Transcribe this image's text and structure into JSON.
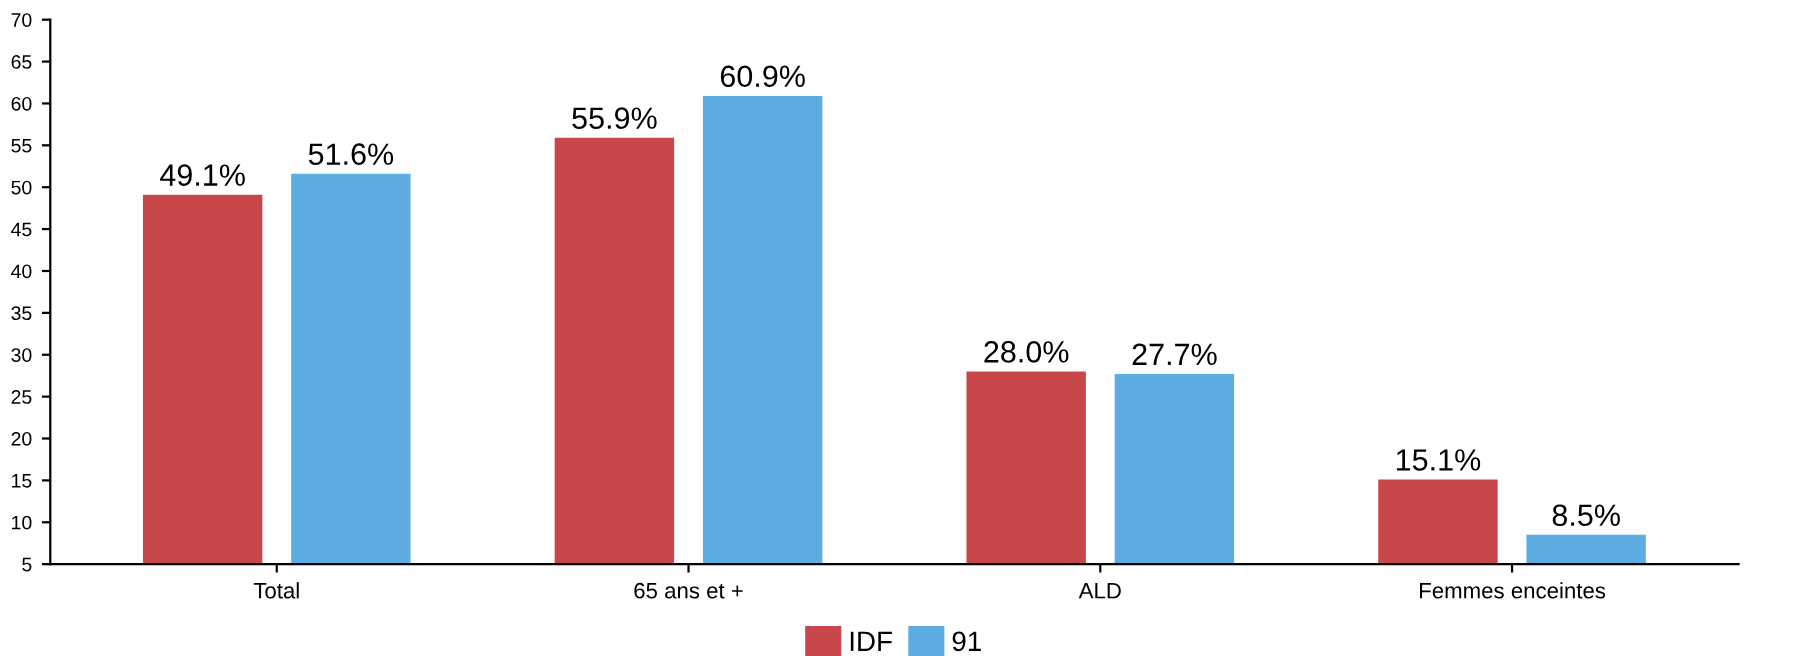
{
  "chart_data": {
    "type": "bar",
    "categories": [
      "Total",
      "65 ans et +",
      "ALD",
      "Femmes enceintes"
    ],
    "series": [
      {
        "name": "IDF",
        "color": "#c8474a",
        "values": [
          49.1,
          55.9,
          28.0,
          15.1
        ],
        "value_labels": [
          "49.1%",
          "55.9%",
          "28.0%",
          "15.1%"
        ]
      },
      {
        "name": "91",
        "color": "#5dade2",
        "values": [
          51.6,
          60.9,
          27.7,
          8.5
        ],
        "value_labels": [
          "51.6%",
          "60.9%",
          "27.7%",
          "8.5%"
        ]
      }
    ],
    "ylim": [
      5,
      70
    ],
    "yticks": [
      5,
      10,
      15,
      20,
      25,
      30,
      35,
      40,
      45,
      50,
      55,
      60,
      65,
      70
    ],
    "grid": false,
    "legend": "bottom"
  }
}
